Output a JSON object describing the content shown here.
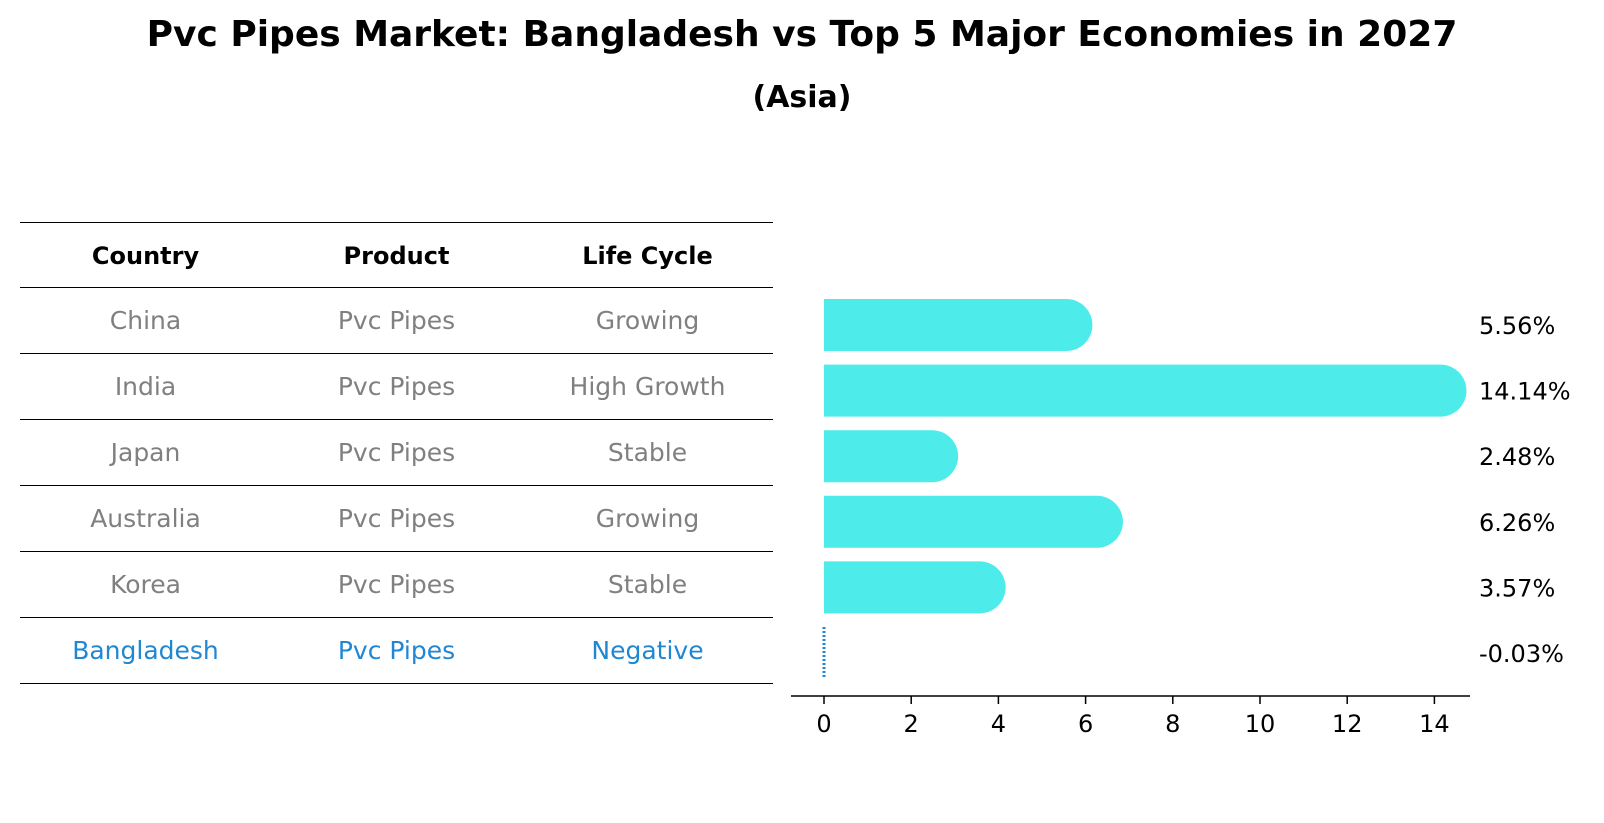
{
  "title": "Pvc Pipes Market: Bangladesh vs Top 5 Major Economies in 2027",
  "subtitle": "(Asia)",
  "table": {
    "headers": [
      "Country",
      "Product",
      "Life Cycle"
    ],
    "rows": [
      [
        "China",
        "Pvc Pipes",
        "Growing"
      ],
      [
        "India",
        "Pvc Pipes",
        "High Growth"
      ],
      [
        "Japan",
        "Pvc Pipes",
        "Stable"
      ],
      [
        "Australia",
        "Pvc Pipes",
        "Growing"
      ],
      [
        "Korea",
        "Pvc Pipes",
        "Stable"
      ],
      [
        "Bangladesh",
        "Pvc Pipes",
        "Negative"
      ]
    ],
    "highlight_row": 5
  },
  "colors": {
    "bar": "#4deceb",
    "highlight": "#1f87d3",
    "muted_text": "#808080"
  },
  "chart_data": {
    "type": "bar",
    "orientation": "horizontal",
    "categories": [
      "China",
      "India",
      "Japan",
      "Australia",
      "Korea",
      "Bangladesh"
    ],
    "values": [
      5.56,
      14.14,
      2.48,
      6.26,
      3.57,
      -0.03
    ],
    "value_labels": [
      "5.56%",
      "14.14%",
      "2.48%",
      "6.26%",
      "3.57%",
      "-0.03%"
    ],
    "xticks": [
      0,
      2,
      4,
      6,
      8,
      10,
      12,
      14
    ],
    "xlim": [
      -0.75,
      14.85
    ],
    "grid": false
  }
}
